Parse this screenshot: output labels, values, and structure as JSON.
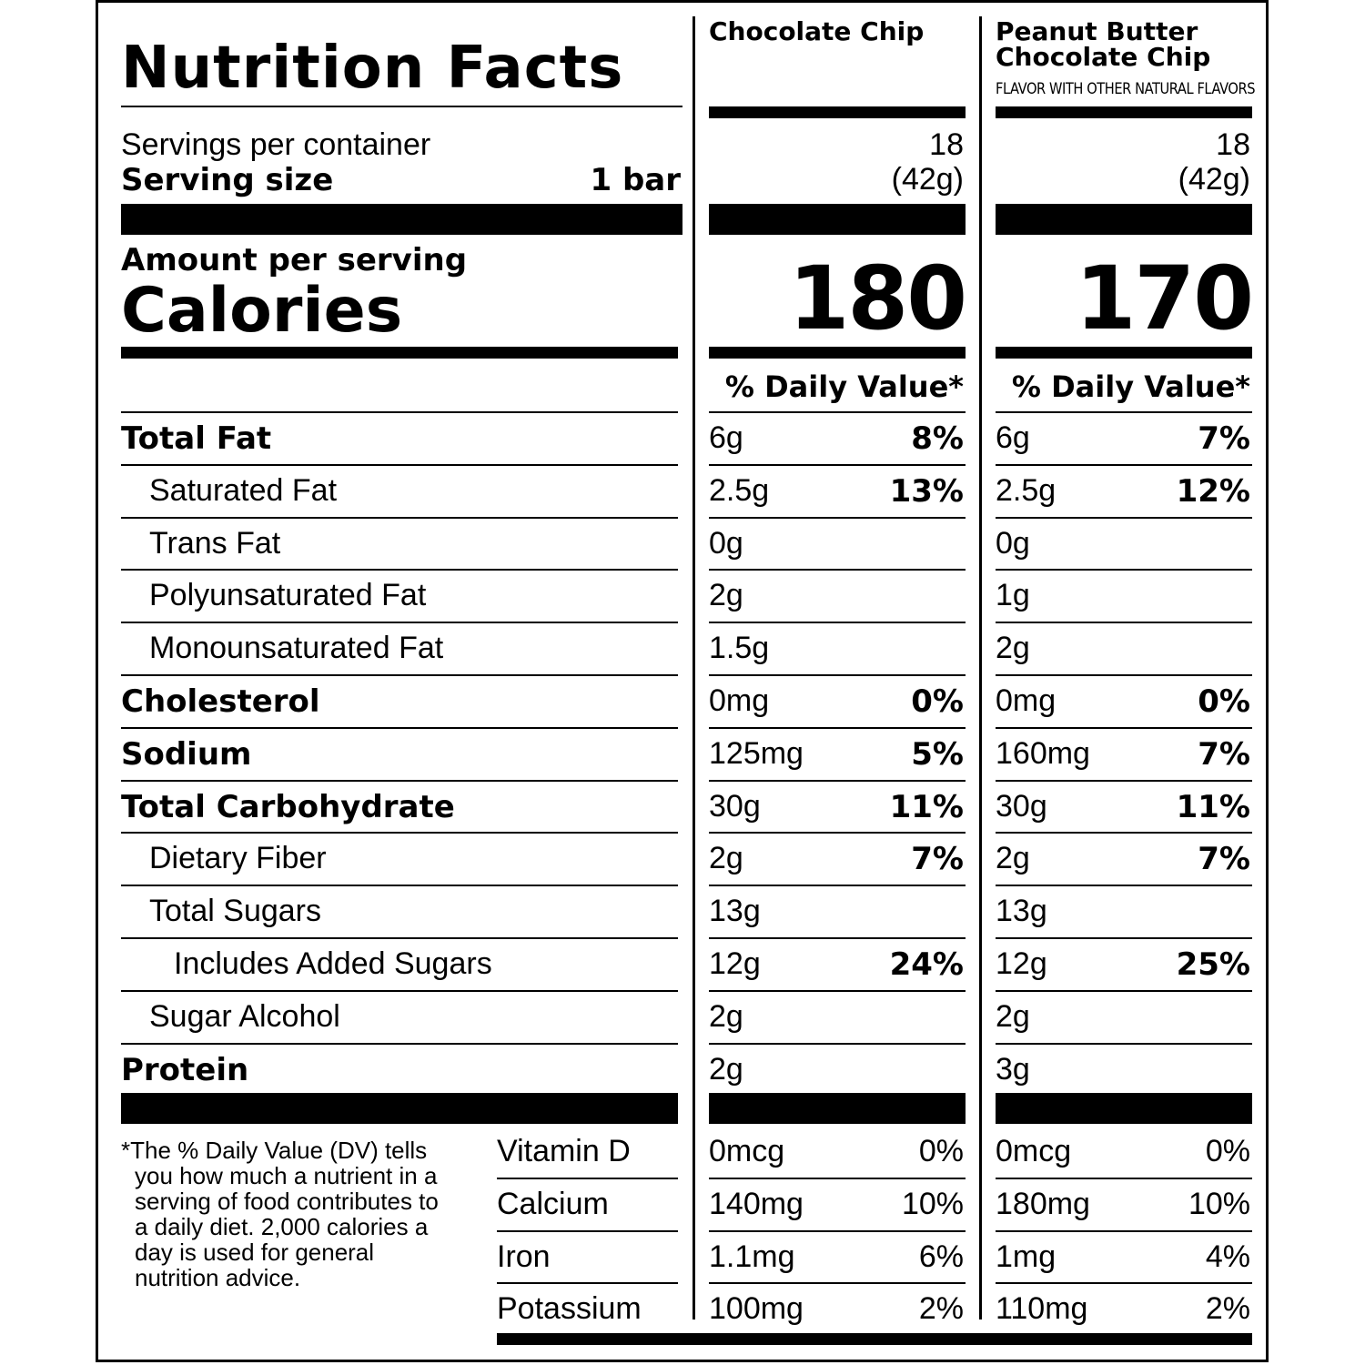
{
  "title": "Nutrition Facts",
  "products": [
    {
      "name": "Chocolate Chip",
      "subtitle": "",
      "servings": "18",
      "serving_weight": "(42g)",
      "calories": "180",
      "dv_header": "% Daily Value*",
      "values": [
        {
          "amount": "6g",
          "dv": "8%"
        },
        {
          "amount": "2.5g",
          "dv": "13%"
        },
        {
          "amount": "0g",
          "dv": ""
        },
        {
          "amount": "2g",
          "dv": ""
        },
        {
          "amount": "1.5g",
          "dv": ""
        },
        {
          "amount": "0mg",
          "dv": "0%"
        },
        {
          "amount": "125mg",
          "dv": "5%"
        },
        {
          "amount": "30g",
          "dv": "11%"
        },
        {
          "amount": "2g",
          "dv": "7%"
        },
        {
          "amount": "13g",
          "dv": ""
        },
        {
          "amount": "12g",
          "dv": "24%"
        },
        {
          "amount": "2g",
          "dv": ""
        },
        {
          "amount": "2g",
          "dv": ""
        }
      ],
      "vitamins": [
        {
          "amount": "0mcg",
          "dv": "0%"
        },
        {
          "amount": "140mg",
          "dv": "10%"
        },
        {
          "amount": "1.1mg",
          "dv": "6%"
        },
        {
          "amount": "100mg",
          "dv": "2%"
        }
      ]
    },
    {
      "name": "Peanut Butter Chocolate Chip",
      "name_line1": "Peanut Butter",
      "name_line2": "Chocolate Chip",
      "subtitle": "FLAVOR WITH OTHER NATURAL FLAVORS",
      "servings": "18",
      "serving_weight": "(42g)",
      "calories": "170",
      "dv_header": "% Daily Value*",
      "values": [
        {
          "amount": "6g",
          "dv": "7%"
        },
        {
          "amount": "2.5g",
          "dv": "12%"
        },
        {
          "amount": "0g",
          "dv": ""
        },
        {
          "amount": "1g",
          "dv": ""
        },
        {
          "amount": "2g",
          "dv": ""
        },
        {
          "amount": "0mg",
          "dv": "0%"
        },
        {
          "amount": "160mg",
          "dv": "7%"
        },
        {
          "amount": "30g",
          "dv": "11%"
        },
        {
          "amount": "2g",
          "dv": "7%"
        },
        {
          "amount": "13g",
          "dv": ""
        },
        {
          "amount": "12g",
          "dv": "25%"
        },
        {
          "amount": "2g",
          "dv": ""
        },
        {
          "amount": "3g",
          "dv": ""
        }
      ],
      "vitamins": [
        {
          "amount": "0mcg",
          "dv": "0%"
        },
        {
          "amount": "180mg",
          "dv": "10%"
        },
        {
          "amount": "1mg",
          "dv": "4%"
        },
        {
          "amount": "110mg",
          "dv": "2%"
        }
      ]
    }
  ],
  "servings_label": "Servings per container",
  "serving_size_label": "Serving size",
  "serving_size_value": "1 bar",
  "amount_per_serving": "Amount per serving",
  "calories_label": "Calories",
  "nutrients": [
    {
      "label": "Total Fat",
      "bold": true,
      "indent": 0
    },
    {
      "label": "Saturated Fat",
      "bold": false,
      "indent": 1
    },
    {
      "label": "Trans Fat",
      "bold": false,
      "indent": 1
    },
    {
      "label": "Polyunsaturated Fat",
      "bold": false,
      "indent": 1
    },
    {
      "label": "Monounsaturated Fat",
      "bold": false,
      "indent": 1
    },
    {
      "label": "Cholesterol",
      "bold": true,
      "indent": 0
    },
    {
      "label": "Sodium",
      "bold": true,
      "indent": 0
    },
    {
      "label": "Total Carbohydrate",
      "bold": true,
      "indent": 0
    },
    {
      "label": "Dietary Fiber",
      "bold": false,
      "indent": 1
    },
    {
      "label": "Total Sugars",
      "bold": false,
      "indent": 1
    },
    {
      "label": "Includes Added Sugars",
      "bold": false,
      "indent": 2
    },
    {
      "label": "Sugar Alcohol",
      "bold": false,
      "indent": 1
    },
    {
      "label": "Protein",
      "bold": true,
      "indent": 0
    }
  ],
  "vitamin_labels": [
    "Vitamin D",
    "Calcium",
    "Iron",
    "Potassium"
  ],
  "footnote": "*The % Daily Value (DV) tells you how much a nutrient in a serving of food contributes to a daily diet. 2,000 calories a day is used for general nutrition advice."
}
